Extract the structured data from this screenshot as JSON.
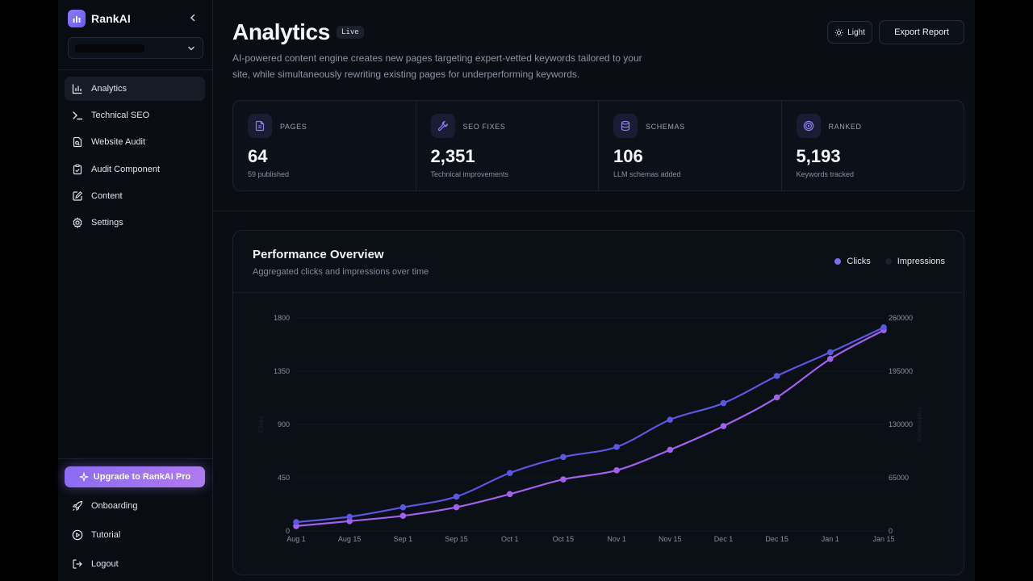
{
  "app": {
    "name": "RankAI"
  },
  "sidebar": {
    "nav": [
      {
        "label": "Analytics",
        "icon": "bar-chart-icon"
      },
      {
        "label": "Technical SEO",
        "icon": "terminal-icon"
      },
      {
        "label": "Website Audit",
        "icon": "file-search-icon"
      },
      {
        "label": "Audit Component",
        "icon": "clipboard-check-icon"
      },
      {
        "label": "Content",
        "icon": "edit-icon"
      },
      {
        "label": "Settings",
        "icon": "gear-icon"
      }
    ],
    "upgrade_label": "Upgrade to RankAI Pro",
    "bottom": [
      {
        "label": "Onboarding",
        "icon": "rocket-icon"
      },
      {
        "label": "Tutorial",
        "icon": "play-circle-icon"
      },
      {
        "label": "Logout",
        "icon": "logout-icon"
      }
    ]
  },
  "header": {
    "title": "Analytics",
    "badge": "Live",
    "description": "AI-powered content engine creates new pages targeting expert-vetted keywords tailored to your site, while simultaneously rewriting existing pages for underperforming keywords.",
    "theme_button": "Light",
    "export_button": "Export Report"
  },
  "stats": [
    {
      "label": "PAGES",
      "value": "64",
      "sub": "59 published"
    },
    {
      "label": "SEO FIXES",
      "value": "2,351",
      "sub": "Technical improvements"
    },
    {
      "label": "SCHEMAS",
      "value": "106",
      "sub": "LLM schemas added"
    },
    {
      "label": "RANKED",
      "value": "5,193",
      "sub": "Keywords tracked"
    }
  ],
  "performance": {
    "title": "Performance Overview",
    "subtitle": "Aggregated clicks and impressions over time",
    "legend": [
      {
        "label": "Clicks",
        "color": "#7a6ef2"
      },
      {
        "label": "Impressions",
        "color": "#1c2130"
      }
    ]
  },
  "chart_data": {
    "type": "line",
    "title": "Performance Overview",
    "x": [
      "Aug 1",
      "Aug 15",
      "Sep 1",
      "Sep 15",
      "Oct 1",
      "Oct 15",
      "Nov 1",
      "Nov 15",
      "Dec 1",
      "Dec 15",
      "Jan 1",
      "Jan 15"
    ],
    "y_left": {
      "label": "Clicks",
      "ticks": [
        "1800",
        "1350",
        "900",
        "450",
        "0"
      ],
      "range": [
        0,
        1800
      ]
    },
    "y_right": {
      "label": "Impressions",
      "ticks": [
        "260000",
        "195000",
        "130000",
        "65000",
        "0"
      ],
      "range": [
        0,
        260000
      ]
    },
    "series": [
      {
        "name": "Clicks",
        "axis": "left",
        "color": "#5b57e3",
        "values": [
          75,
          120,
          200,
          290,
          490,
          625,
          710,
          940,
          1080,
          1310,
          1510,
          1720
        ]
      },
      {
        "name": "Impressions",
        "axis": "right",
        "color": "#a260ee",
        "values": [
          6000,
          12000,
          18500,
          29000,
          45000,
          63000,
          74000,
          99000,
          128000,
          163000,
          210000,
          245000
        ]
      }
    ]
  }
}
